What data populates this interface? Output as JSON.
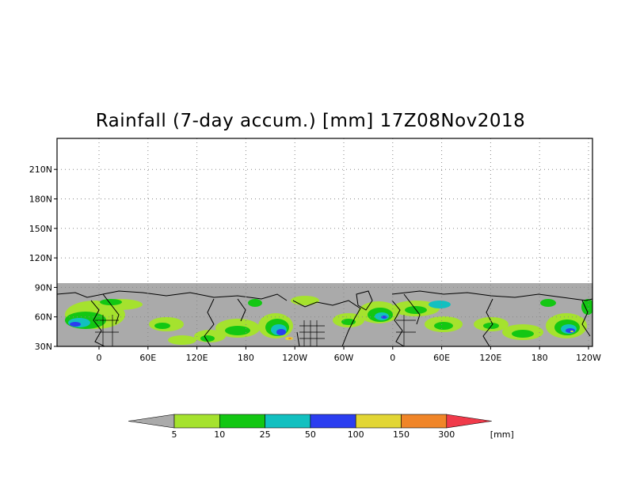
{
  "title": "Rainfall (7-day accum.) [mm] 17Z08Nov2018",
  "map": {
    "y_ticks": [
      "210N",
      "180N",
      "150N",
      "120N",
      "90N",
      "60N",
      "30N"
    ],
    "x_ticks": [
      "0",
      "60E",
      "120E",
      "180",
      "120W",
      "60W",
      "0",
      "60E",
      "120E",
      "180",
      "120W"
    ],
    "no_data_color": "#aaaaaa",
    "grid": "dotted"
  },
  "colorbar": {
    "colors": [
      "#aaaaaa",
      "#a5e22e",
      "#13c713",
      "#12c0c0",
      "#2b3ef0",
      "#e2d635",
      "#f08528",
      "#f03a4a"
    ],
    "labels": [
      "5",
      "10",
      "25",
      "50",
      "100",
      "150",
      "300"
    ],
    "unit": "[mm]"
  }
}
